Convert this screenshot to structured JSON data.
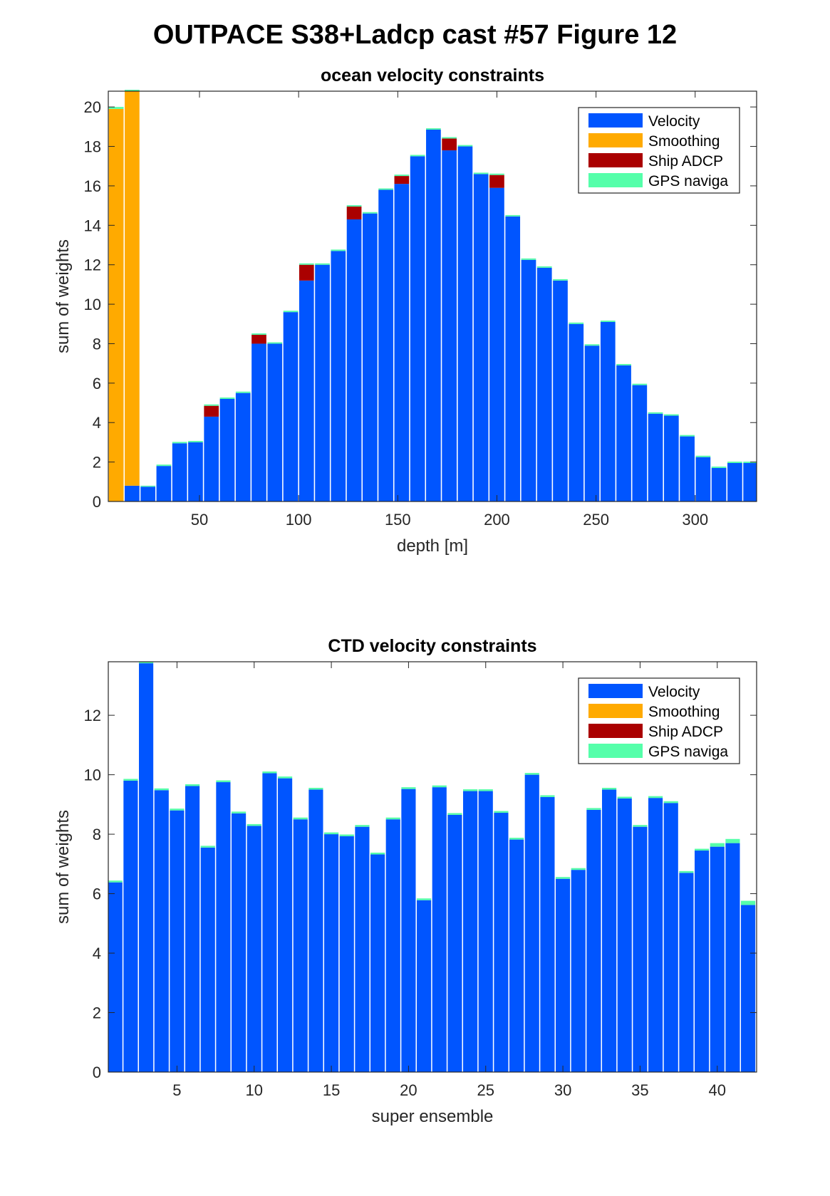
{
  "figure_title": "OUTPACE S38+Ladcp cast #57  Figure 12",
  "colors": {
    "velocity": "#0055ff",
    "smoothing": "#ffaa00",
    "ship_adcp": "#aa0000",
    "gps": "#55ffaa"
  },
  "chart_data": [
    {
      "type": "bar",
      "stacked": true,
      "title": "ocean velocity constraints",
      "xlabel": "depth [m]",
      "ylabel": "sum of weights",
      "xlim": [
        4,
        331
      ],
      "ylim": [
        0,
        20.8
      ],
      "xticks": [
        50,
        100,
        150,
        200,
        250,
        300
      ],
      "yticks": [
        0,
        2,
        4,
        6,
        8,
        10,
        12,
        14,
        16,
        18,
        20
      ],
      "grid": false,
      "legend_position": "top-right",
      "legend": [
        "Velocity",
        "Smoothing",
        "Ship ADCP",
        "GPS naviga"
      ],
      "x": [
        8,
        16,
        24,
        32,
        40,
        48,
        56,
        64,
        72,
        80,
        88,
        96,
        104,
        112,
        120,
        128,
        136,
        144,
        152,
        160,
        168,
        176,
        184,
        192,
        200,
        208,
        216,
        224,
        232,
        240,
        248,
        256,
        264,
        272,
        280,
        288,
        296,
        304,
        312,
        320,
        328
      ],
      "series": [
        {
          "name": "Velocity",
          "color": "#0055ff",
          "values": [
            0,
            0.8,
            0.75,
            1.8,
            2.95,
            3.0,
            4.3,
            5.2,
            5.5,
            8.0,
            8.0,
            9.6,
            11.2,
            12.0,
            12.7,
            14.3,
            14.6,
            15.8,
            16.1,
            17.5,
            18.85,
            17.8,
            18.0,
            16.6,
            15.9,
            14.45,
            12.25,
            11.85,
            11.2,
            9.0,
            7.9,
            9.1,
            6.9,
            5.9,
            4.45,
            4.35,
            3.3,
            2.25,
            1.7,
            1.95,
            1.95
          ]
        },
        {
          "name": "Smoothing",
          "color": "#ffaa00",
          "values": [
            19.9,
            20.0,
            0,
            0,
            0,
            0,
            0,
            0,
            0,
            0,
            0,
            0,
            0,
            0,
            0,
            0,
            0,
            0,
            0,
            0,
            0,
            0,
            0,
            0,
            0,
            0,
            0,
            0,
            0,
            0,
            0,
            0,
            0,
            0,
            0,
            0,
            0,
            0,
            0,
            0,
            0
          ]
        },
        {
          "name": "Ship ADCP",
          "color": "#aa0000",
          "values": [
            0,
            0,
            0,
            0,
            0,
            0,
            0.55,
            0,
            0,
            0.45,
            0,
            0,
            0.8,
            0,
            0,
            0.65,
            0,
            0,
            0.4,
            0,
            0,
            0.6,
            0,
            0,
            0.65,
            0,
            0,
            0,
            0,
            0,
            0,
            0,
            0,
            0,
            0,
            0,
            0,
            0,
            0,
            0,
            0
          ]
        },
        {
          "name": "GPS naviga",
          "color": "#55ffaa",
          "values": [
            0.1,
            0.1,
            0.05,
            0.07,
            0.07,
            0.07,
            0.07,
            0.07,
            0.07,
            0.07,
            0.07,
            0.07,
            0.07,
            0.07,
            0.07,
            0.07,
            0.07,
            0.07,
            0.07,
            0.07,
            0.07,
            0.07,
            0.07,
            0.07,
            0.07,
            0.07,
            0.07,
            0.07,
            0.07,
            0.07,
            0.07,
            0.07,
            0.07,
            0.07,
            0.07,
            0.07,
            0.07,
            0.07,
            0.07,
            0.07,
            0.07
          ]
        }
      ]
    },
    {
      "type": "bar",
      "stacked": true,
      "title": "CTD velocity constraints",
      "xlabel": "super ensemble",
      "ylabel": "sum of weights",
      "xlim": [
        0.55,
        42.55
      ],
      "ylim": [
        0,
        13.8
      ],
      "xticks": [
        5,
        10,
        15,
        20,
        25,
        30,
        35,
        40
      ],
      "yticks": [
        0,
        2,
        4,
        6,
        8,
        10,
        12
      ],
      "grid": false,
      "legend_position": "top-right",
      "legend": [
        "Velocity",
        "Smoothing",
        "Ship ADCP",
        "GPS naviga"
      ],
      "x": [
        1,
        2,
        3,
        4,
        5,
        6,
        7,
        8,
        9,
        10,
        11,
        12,
        13,
        14,
        15,
        16,
        17,
        18,
        19,
        20,
        21,
        22,
        23,
        24,
        25,
        26,
        27,
        28,
        29,
        30,
        31,
        32,
        33,
        34,
        35,
        36,
        37,
        38,
        39,
        40,
        41,
        42
      ],
      "series": [
        {
          "name": "Velocity",
          "color": "#0055ff",
          "values": [
            6.38,
            9.8,
            13.75,
            9.48,
            8.8,
            9.62,
            7.55,
            9.75,
            8.7,
            8.28,
            10.05,
            9.88,
            8.5,
            9.5,
            8.0,
            7.93,
            8.25,
            7.32,
            8.5,
            9.52,
            5.78,
            9.58,
            8.65,
            9.45,
            9.45,
            8.72,
            7.82,
            10.0,
            9.25,
            6.5,
            6.8,
            8.82,
            9.5,
            9.2,
            8.25,
            9.22,
            9.05,
            6.7,
            7.45,
            7.58,
            7.7,
            5.62
          ]
        },
        {
          "name": "Smoothing",
          "color": "#ffaa00",
          "values": [
            0,
            0,
            0,
            0,
            0,
            0,
            0,
            0,
            0,
            0,
            0,
            0,
            0,
            0,
            0,
            0,
            0,
            0,
            0,
            0,
            0,
            0,
            0,
            0,
            0,
            0,
            0,
            0,
            0,
            0,
            0,
            0,
            0,
            0,
            0,
            0,
            0,
            0,
            0,
            0,
            0,
            0
          ]
        },
        {
          "name": "Ship ADCP",
          "color": "#aa0000",
          "values": [
            0,
            0,
            0,
            0,
            0,
            0,
            0,
            0,
            0,
            0,
            0,
            0,
            0,
            0,
            0,
            0,
            0,
            0,
            0,
            0,
            0,
            0,
            0,
            0,
            0,
            0,
            0,
            0,
            0,
            0,
            0,
            0,
            0,
            0,
            0,
            0,
            0,
            0,
            0,
            0,
            0,
            0
          ]
        },
        {
          "name": "GPS naviga",
          "color": "#55ffaa",
          "values": [
            0.06,
            0.06,
            0.06,
            0.06,
            0.06,
            0.06,
            0.06,
            0.06,
            0.06,
            0.06,
            0.06,
            0.06,
            0.06,
            0.06,
            0.06,
            0.06,
            0.06,
            0.06,
            0.06,
            0.06,
            0.06,
            0.06,
            0.06,
            0.06,
            0.06,
            0.06,
            0.06,
            0.06,
            0.06,
            0.06,
            0.06,
            0.06,
            0.06,
            0.06,
            0.06,
            0.06,
            0.06,
            0.06,
            0.06,
            0.12,
            0.14,
            0.14
          ]
        }
      ]
    }
  ]
}
